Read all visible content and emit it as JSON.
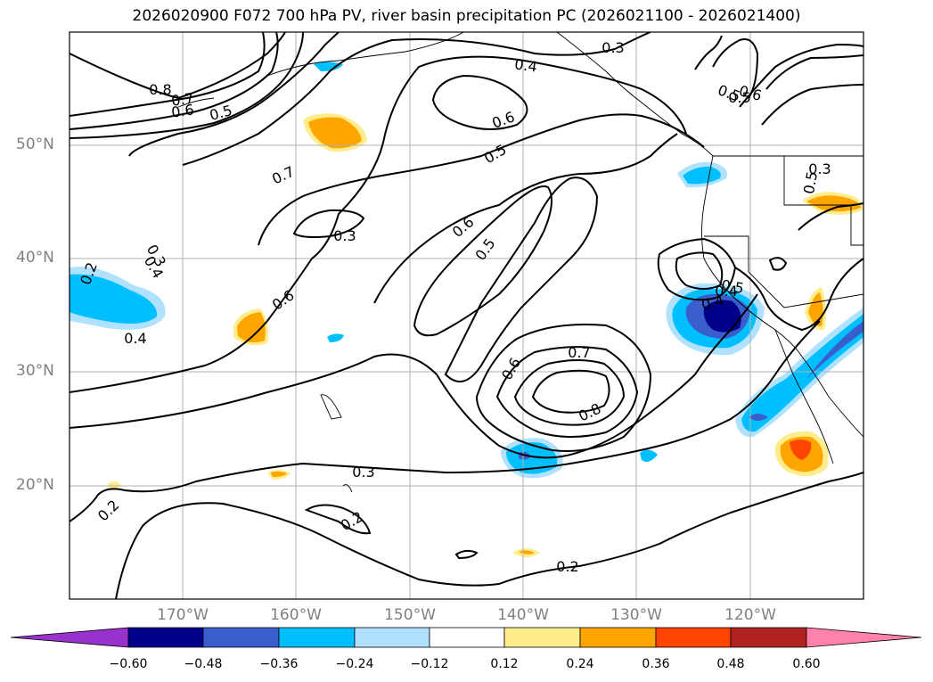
{
  "title": "2026020900 F072 700 hPa PV, river basin precipitation PC (2026021100 - 2026021400)",
  "latitude_labels": [
    "50°N",
    "40°N",
    "30°N",
    "20°N"
  ],
  "longitude_labels": [
    "170°W",
    "160°W",
    "150°W",
    "140°W",
    "130°W",
    "120°W"
  ],
  "contour_labels": [
    "0.3",
    "0.4",
    "0.8",
    "0.7",
    "0.6",
    "0.5",
    "0.6",
    "0.5",
    "0.7",
    "0.6",
    "0.5",
    "0.3",
    "0.6",
    "0.3",
    "0.2",
    "0.4",
    "0.4",
    "0.5",
    "0.3",
    "0.4",
    "0.5",
    "0.7",
    "0.6",
    "0.8",
    "0.3",
    "0.2",
    "0.2",
    "0.2",
    "0.4",
    "0.5",
    "0.6",
    "0.5"
  ],
  "colorbar": {
    "ticks": [
      "−0.60",
      "−0.48",
      "−0.36",
      "−0.24",
      "−0.12",
      "0.12",
      "0.24",
      "0.36",
      "0.48",
      "0.60"
    ],
    "colors": [
      "#9932CC",
      "#00008B",
      "#3A5FCD",
      "#00BFFF",
      "#B0E2FF",
      "#FFFFFF",
      "#FFEC8B",
      "#FFA500",
      "#FF4500",
      "#B22222",
      "#FF82AB"
    ]
  },
  "shading_colors": {
    "light_blue": "#B0E2FF",
    "blue": "#00BFFF",
    "royal_blue": "#3A5FCD",
    "dark_blue": "#00008B",
    "light_yellow": "#FFEC8B",
    "orange": "#FFA500",
    "red_orange": "#FF4500"
  }
}
